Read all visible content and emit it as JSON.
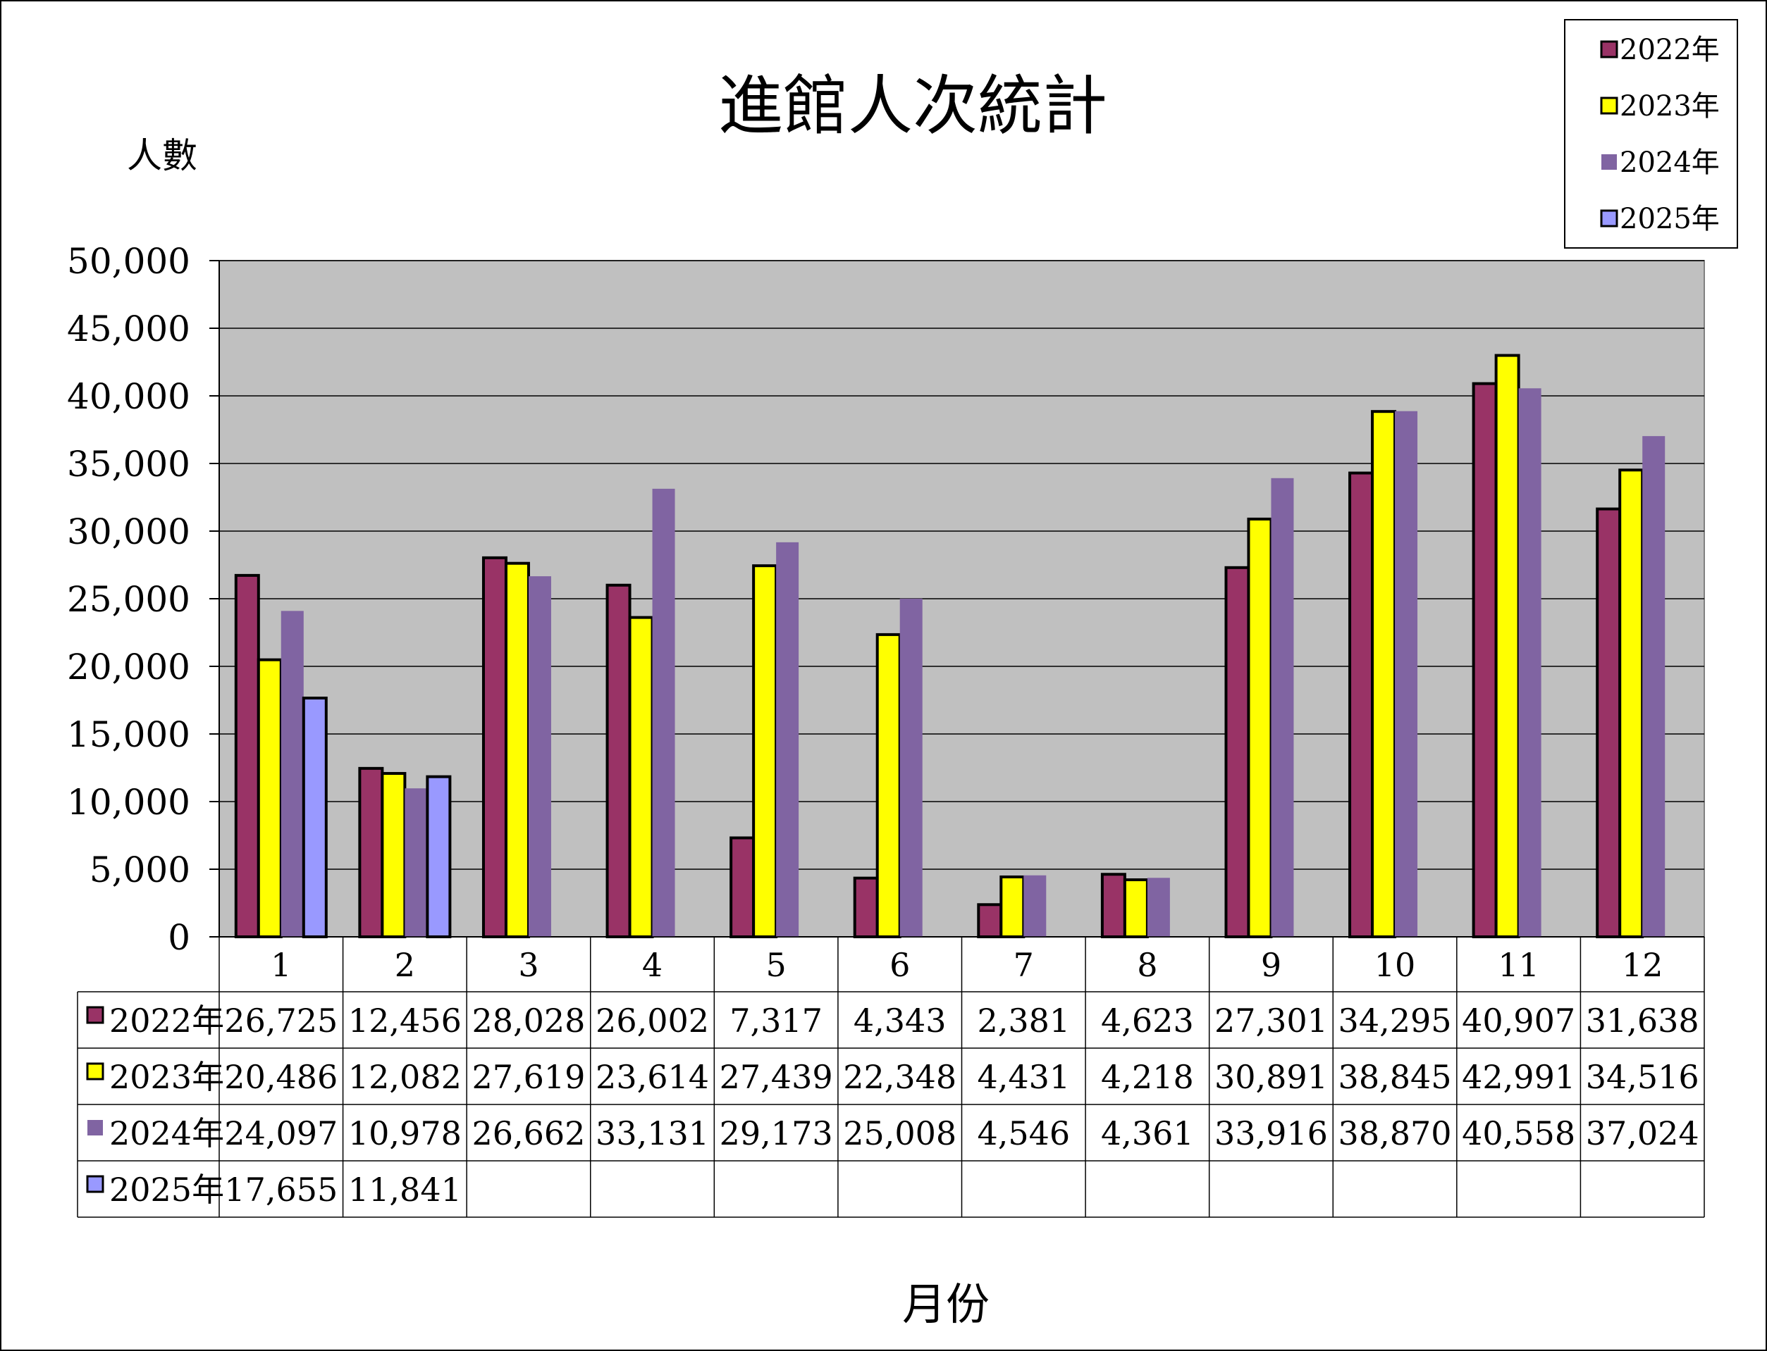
{
  "chart_data": {
    "type": "bar",
    "title": "進館人次統計",
    "ylabel": "人數",
    "xlabel": "月份",
    "categories": [
      "1",
      "2",
      "3",
      "4",
      "5",
      "6",
      "7",
      "8",
      "9",
      "10",
      "11",
      "12"
    ],
    "ylim": [
      0,
      50000
    ],
    "yticks": [
      0,
      5000,
      10000,
      15000,
      20000,
      25000,
      30000,
      35000,
      40000,
      45000,
      50000
    ],
    "ytick_labels": [
      "0",
      "5,000",
      "10,000",
      "15,000",
      "20,000",
      "25,000",
      "30,000",
      "35,000",
      "40,000",
      "45,000",
      "50,000"
    ],
    "grid": true,
    "legend_position": "top-right",
    "plot_background": "#C0C0C0",
    "series": [
      {
        "name": "2022年",
        "color": "#993366",
        "outlined": true,
        "values": [
          26725,
          12456,
          28028,
          26002,
          7317,
          4343,
          2381,
          4623,
          27301,
          34295,
          40907,
          31638
        ],
        "labels": [
          "26,725",
          "12,456",
          "28,028",
          "26,002",
          "7,317",
          "4,343",
          "2,381",
          "4,623",
          "27,301",
          "34,295",
          "40,907",
          "31,638"
        ]
      },
      {
        "name": "2023年",
        "color": "#FFFF00",
        "outlined": true,
        "values": [
          20486,
          12082,
          27619,
          23614,
          27439,
          22348,
          4431,
          4218,
          30891,
          38845,
          42991,
          34516
        ],
        "labels": [
          "20,486",
          "12,082",
          "27,619",
          "23,614",
          "27,439",
          "22,348",
          "4,431",
          "4,218",
          "30,891",
          "38,845",
          "42,991",
          "34,516"
        ]
      },
      {
        "name": "2024年",
        "color": "#8064A2",
        "outlined": false,
        "values": [
          24097,
          10978,
          26662,
          33131,
          29173,
          25008,
          4546,
          4361,
          33916,
          38870,
          40558,
          37024
        ],
        "labels": [
          "24,097",
          "10,978",
          "26,662",
          "33,131",
          "29,173",
          "25,008",
          "4,546",
          "4,361",
          "33,916",
          "38,870",
          "40,558",
          "37,024"
        ]
      },
      {
        "name": "2025年",
        "color": "#9999FF",
        "outlined": true,
        "values": [
          17655,
          11841,
          null,
          null,
          null,
          null,
          null,
          null,
          null,
          null,
          null,
          null
        ],
        "labels": [
          "17,655",
          "11,841",
          "",
          "",
          "",
          "",
          "",
          "",
          "",
          "",
          "",
          ""
        ]
      }
    ]
  }
}
